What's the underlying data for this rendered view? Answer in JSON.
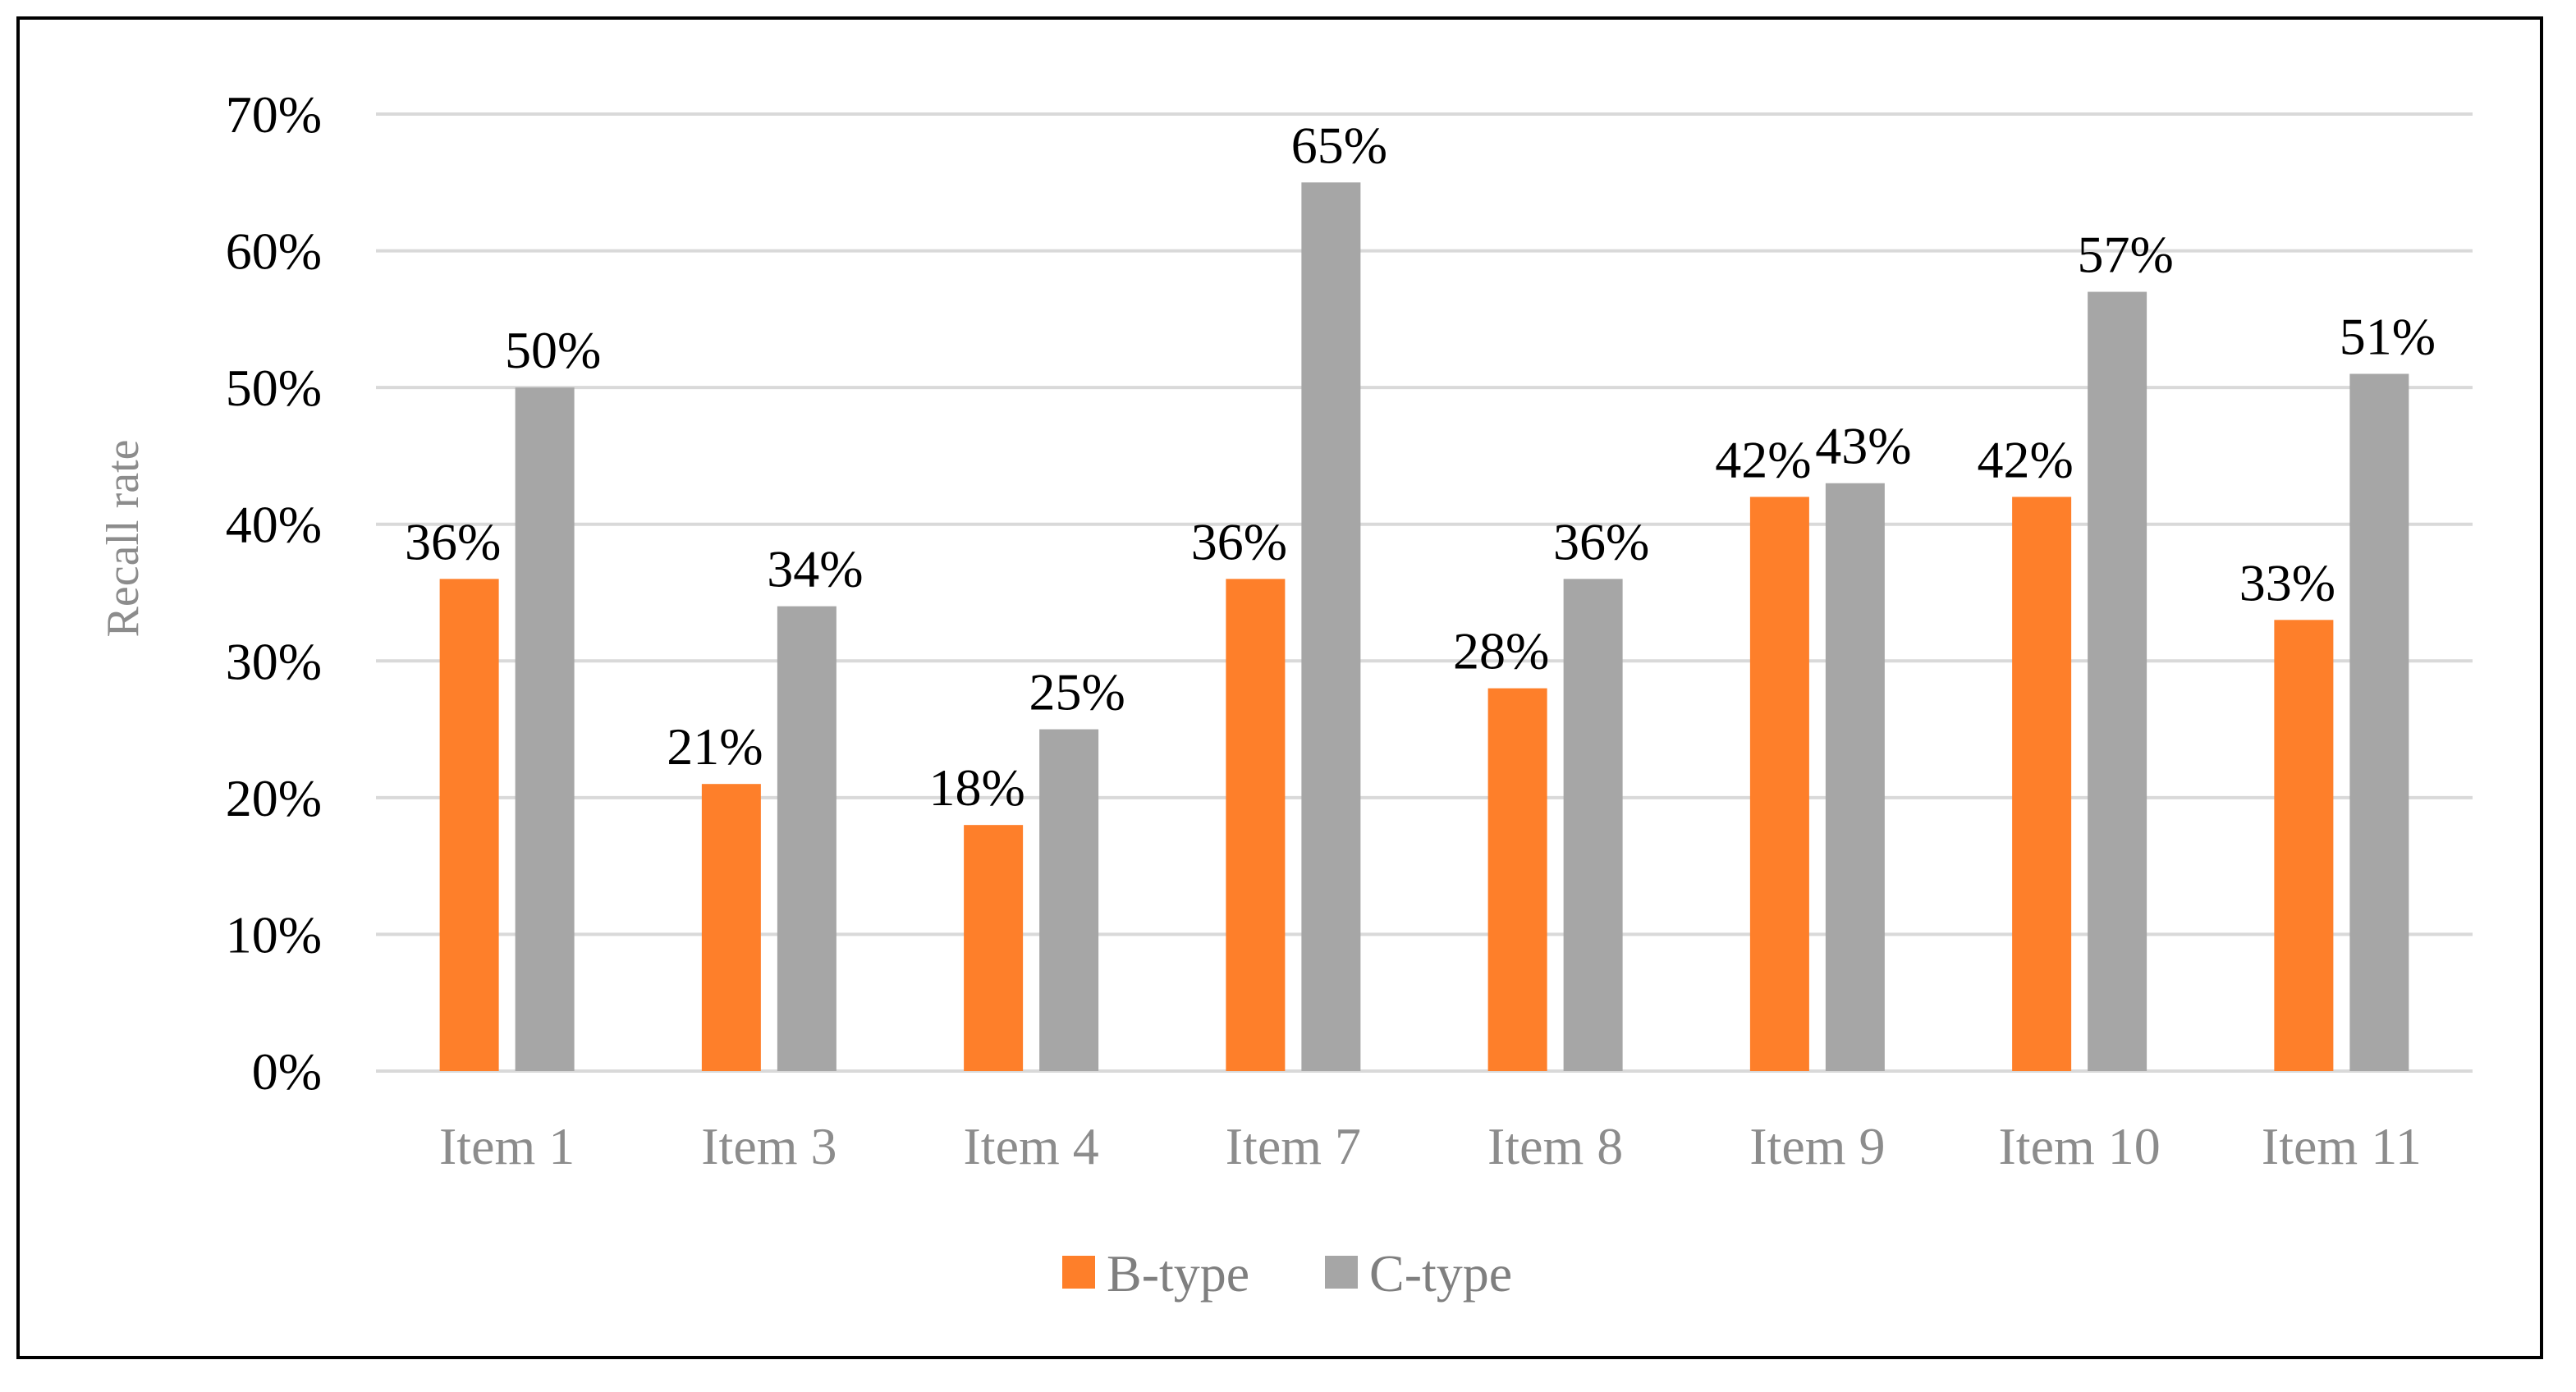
{
  "chart_data": {
    "type": "bar",
    "categories": [
      "Item 1",
      "Item 3",
      "Item 4",
      "Item 7",
      "Item 8",
      "Item 9",
      "Item 10",
      "Item 11"
    ],
    "series": [
      {
        "name": "B-type",
        "color": "#fe7f2a",
        "values": [
          36,
          21,
          18,
          36,
          28,
          42,
          42,
          33
        ]
      },
      {
        "name": "C-type",
        "color": "#a6a6a6",
        "values": [
          50,
          34,
          25,
          65,
          36,
          43,
          57,
          51
        ]
      }
    ],
    "ylabel": "Recall rate",
    "ylim": [
      0,
      70
    ],
    "yticks": [
      "0%",
      "10%",
      "20%",
      "30%",
      "40%",
      "50%",
      "60%",
      "70%"
    ],
    "value_suffix": "%",
    "grid": true,
    "legend_position": "bottom"
  }
}
